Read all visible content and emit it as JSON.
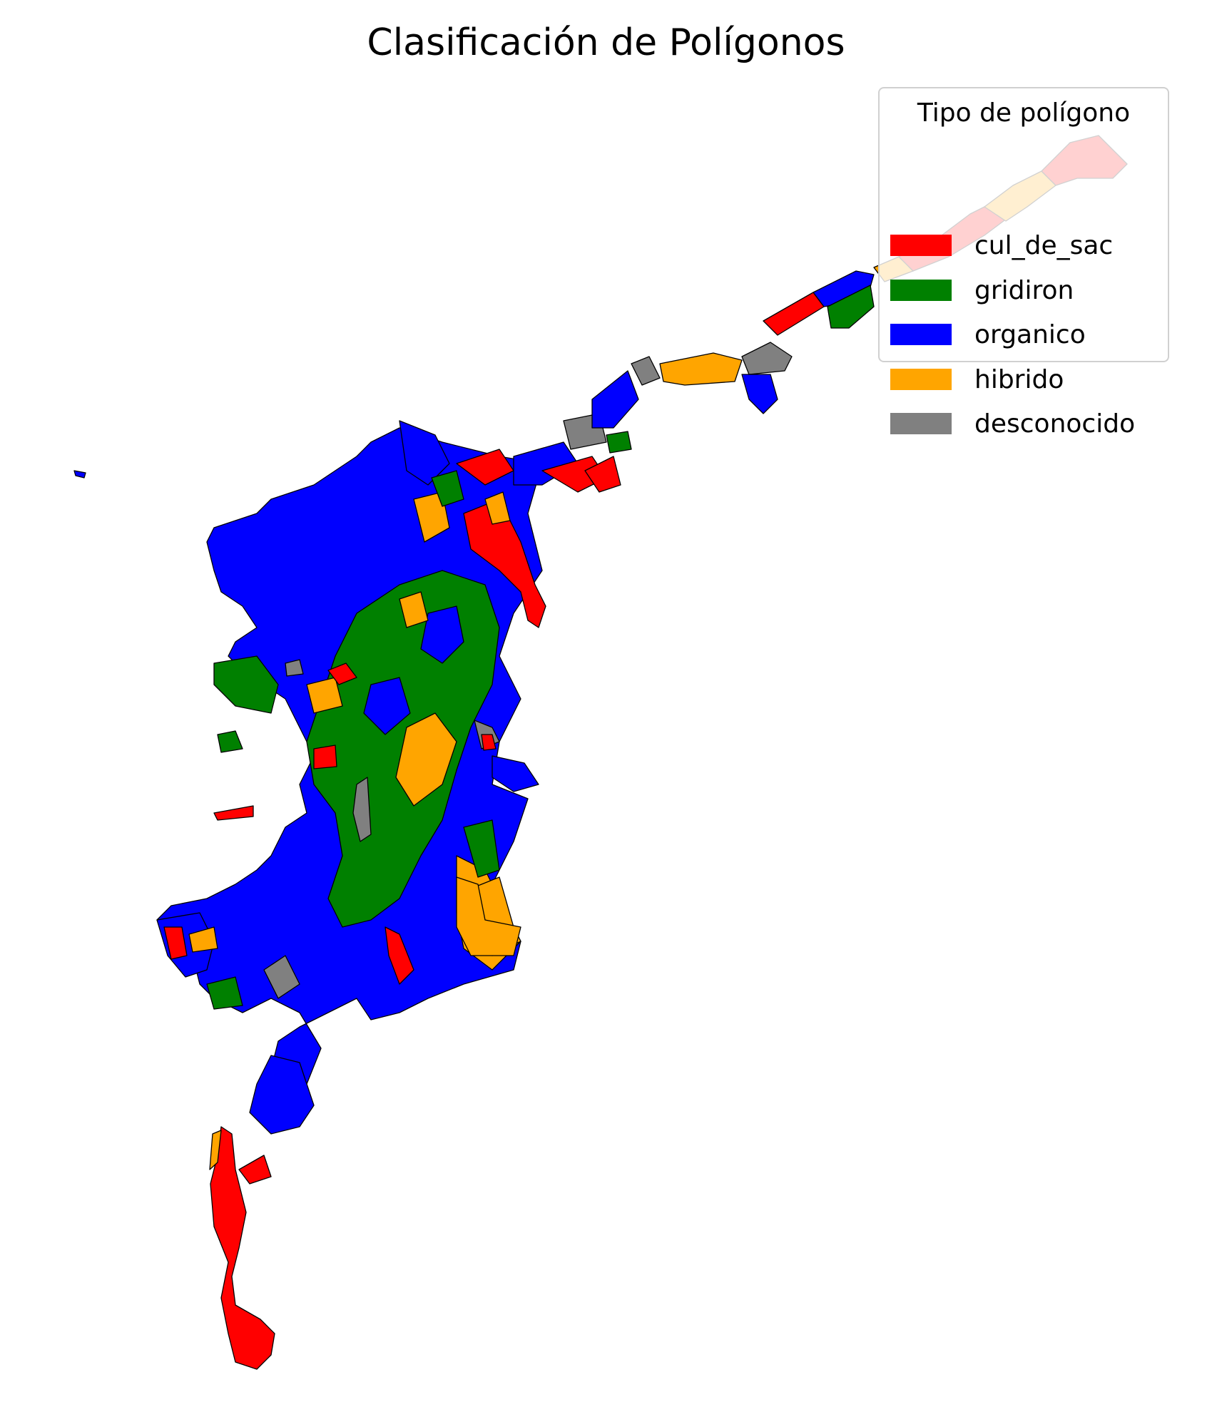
{
  "title": "Clasificación de Polígonos",
  "legend": {
    "title": "Tipo de polígono",
    "items": [
      {
        "label": "cul_de_sac",
        "color": "#ff0000"
      },
      {
        "label": "gridiron",
        "color": "#008000"
      },
      {
        "label": "organico",
        "color": "#0000ff"
      },
      {
        "label": "hibrido",
        "color": "#ffa500"
      },
      {
        "label": "desconocido",
        "color": "#808080"
      }
    ]
  }
}
